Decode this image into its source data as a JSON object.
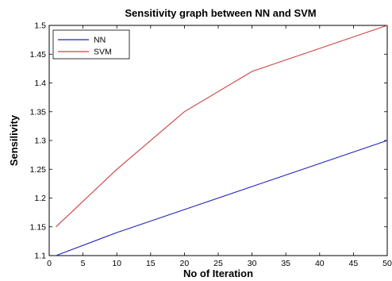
{
  "chart_data": {
    "type": "line",
    "title": "Sensitivity graph between NN and SVM",
    "xlabel": "No of Iteration",
    "ylabel": "Sensilivity",
    "xlim": [
      0,
      50
    ],
    "ylim": [
      1.1,
      1.5
    ],
    "x_ticks": [
      "0",
      "5",
      "10",
      "15",
      "20",
      "25",
      "30",
      "35",
      "40",
      "45",
      "50"
    ],
    "y_ticks": [
      "1.1",
      "1.15",
      "1.2",
      "1.25",
      "1.3",
      "1.35",
      "1.4",
      "1.45",
      "1.5"
    ],
    "grid": false,
    "legend": "top-left",
    "series": [
      {
        "name": "NN",
        "color": "#2020c0",
        "x": [
          1,
          10,
          20,
          30,
          40,
          50
        ],
        "y": [
          1.1,
          1.14,
          1.18,
          1.22,
          1.26,
          1.3
        ]
      },
      {
        "name": "SVM",
        "color": "#d04040",
        "x": [
          1,
          10,
          20,
          30,
          40,
          50
        ],
        "y": [
          1.15,
          1.25,
          1.35,
          1.42,
          1.46,
          1.5
        ]
      }
    ]
  }
}
